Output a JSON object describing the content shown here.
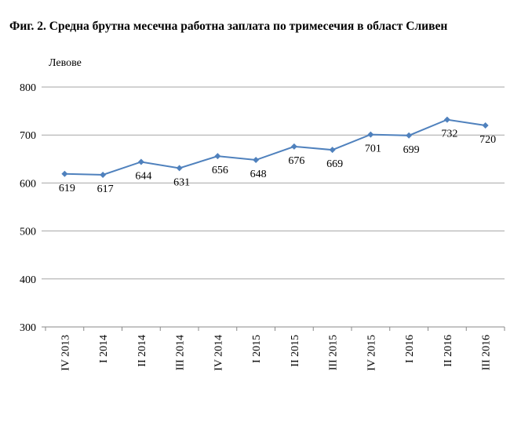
{
  "chart_data": {
    "type": "line",
    "title": "Фиг. 2. Средна брутна месечна работна заплата по тримесечия в област Сливен",
    "ylabel": "Левове",
    "xlabel": "",
    "categories": [
      "IV 2013",
      "I 2014",
      "II 2014",
      "III 2014",
      "IV 2014",
      "I 2015",
      "II 2015",
      "III 2015",
      "IV 2015",
      "I 2016",
      "II 2016",
      "III 2016"
    ],
    "values": [
      619,
      617,
      644,
      631,
      656,
      648,
      676,
      669,
      701,
      699,
      732,
      720
    ],
    "ylim": [
      300,
      800
    ],
    "yticks": [
      300,
      400,
      500,
      600,
      700,
      800
    ],
    "grid": true,
    "legend": "none",
    "colors": {
      "line": "#4f81bd",
      "marker": "#4f81bd",
      "grid": "#999999"
    }
  }
}
